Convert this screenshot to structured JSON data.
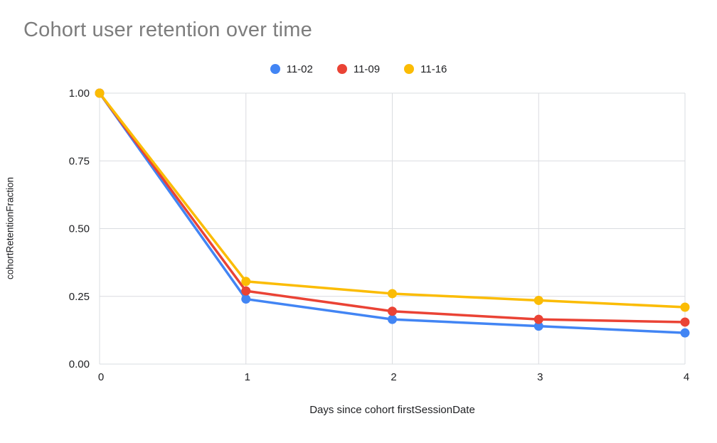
{
  "chart_data": {
    "type": "line",
    "title": "Cohort user retention over time",
    "xlabel": "Days since cohort firstSessionDate",
    "ylabel": "cohortRetentionFraction",
    "x": [
      0,
      1,
      2,
      3,
      4
    ],
    "xticks": [
      "0",
      "1",
      "2",
      "3",
      "4"
    ],
    "yticks": [
      "0.00",
      "0.25",
      "0.50",
      "0.75",
      "1.00"
    ],
    "xlim": [
      0,
      4
    ],
    "ylim": [
      0,
      1
    ],
    "grid": true,
    "legend_position": "top",
    "series": [
      {
        "name": "11-02",
        "color": "#4285F4",
        "values": [
          1.0,
          0.24,
          0.165,
          0.14,
          0.115
        ]
      },
      {
        "name": "11-09",
        "color": "#EA4335",
        "values": [
          1.0,
          0.27,
          0.195,
          0.165,
          0.155
        ]
      },
      {
        "name": "11-16",
        "color": "#FBBC04",
        "values": [
          1.0,
          0.305,
          0.26,
          0.235,
          0.21
        ]
      }
    ],
    "styles": {
      "gridline_color": "#dadce0",
      "tick_label_color": "#202124",
      "title_color": "#7d7d7d",
      "background": "#ffffff"
    }
  }
}
